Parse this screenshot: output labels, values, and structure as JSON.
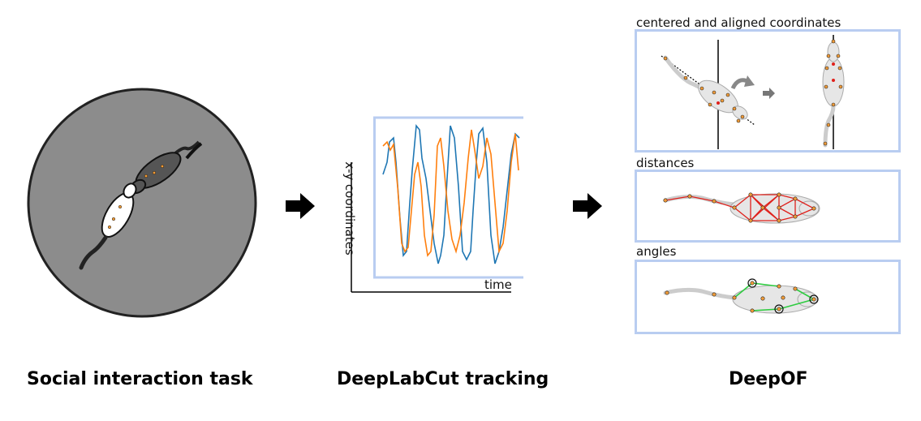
{
  "captions": {
    "social": "Social interaction task",
    "tracking": "DeepLabCut tracking",
    "deepof": "DeepOF"
  },
  "tracking_plot": {
    "ylabel": "x-y coordinates",
    "xlabel": "time",
    "colors": {
      "series_a": "#1f77b4",
      "series_b": "#ff7f0e",
      "frame": "#b9cdf1"
    }
  },
  "panels": {
    "aligned": {
      "label": "centered and aligned coordinates"
    },
    "distances": {
      "label": "distances"
    },
    "angles": {
      "label": "angles"
    }
  },
  "colors": {
    "arena": "#8c8c8c",
    "distance_edges": "#e0201b",
    "angle_edges": "#2ecc40",
    "keypoint": "#f29c38"
  },
  "icons": [
    "right-arrow-icon",
    "rotate-arrow-icon"
  ]
}
